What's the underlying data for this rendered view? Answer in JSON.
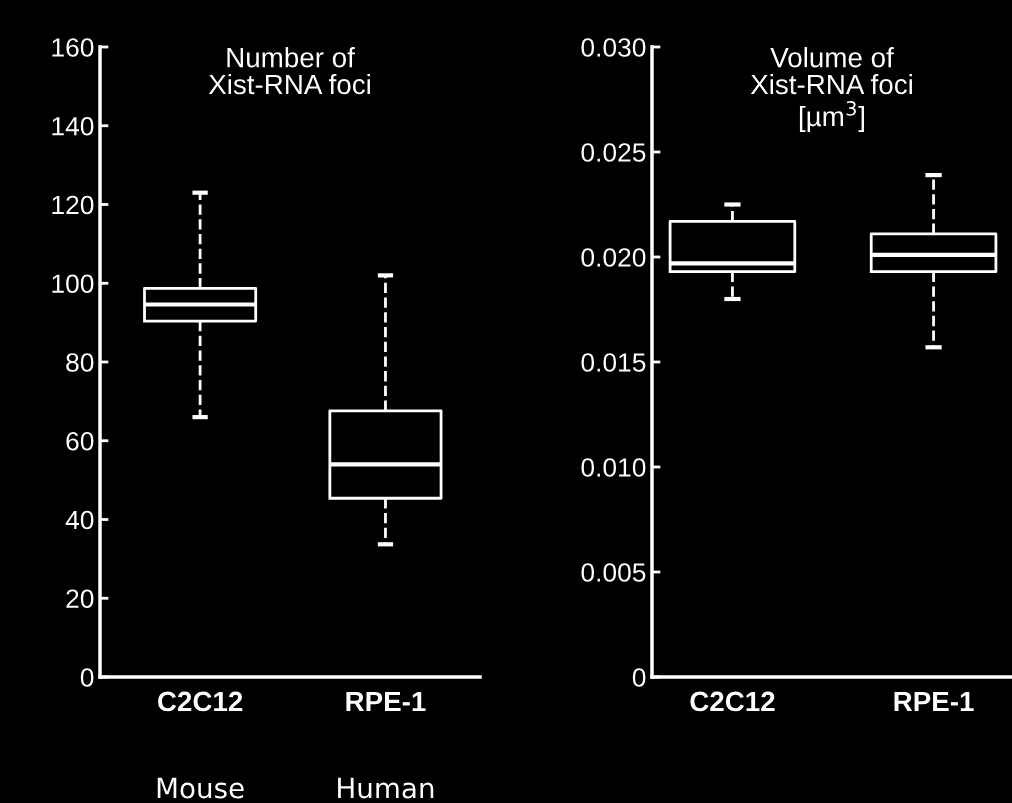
{
  "chart_data": [
    {
      "type": "box",
      "title": "Number of\nXist-RNA foci",
      "categories": [
        "C2C12",
        "RPE-1"
      ],
      "ylim": [
        0,
        160
      ],
      "yticks": [
        0,
        20,
        40,
        60,
        80,
        100,
        120,
        140,
        160
      ],
      "color": "#ffffff",
      "line_style": "dashed",
      "boxes": [
        {
          "low": 66,
          "q1": 90.4,
          "median": 94.6,
          "q3": 98.7,
          "high": 123
        },
        {
          "low": 33.7,
          "q1": 45.4,
          "median": 54,
          "q3": 67.6,
          "high": 102
        }
      ],
      "annotations": [
        "Mouse",
        "Human"
      ]
    },
    {
      "type": "box",
      "title": "Volume of\nXist-RNA foci\n[µm$^{3}$]",
      "categories": [
        "C2C12",
        "RPE-1"
      ],
      "ylim": [
        0,
        0.03
      ],
      "yticks": [
        {
          "value": 0,
          "label": "0"
        },
        {
          "value": 0.005,
          "label": "0.005"
        },
        {
          "value": 0.01,
          "label": "0.010"
        },
        {
          "value": 0.015,
          "label": "0.015"
        },
        {
          "value": 0.02,
          "label": "0.020"
        },
        {
          "value": 0.025,
          "label": "0.025"
        },
        {
          "value": 0.03,
          "label": "0.030"
        }
      ],
      "color": "#ffffff",
      "line_style": "dashed",
      "boxes": [
        {
          "low": 0.018,
          "q1": 0.0193,
          "median": 0.0197,
          "q3": 0.0217,
          "high": 0.0225
        },
        {
          "low": 0.0157,
          "q1": 0.0193,
          "median": 0.0201,
          "q3": 0.0211,
          "high": 0.0239
        }
      ]
    }
  ]
}
